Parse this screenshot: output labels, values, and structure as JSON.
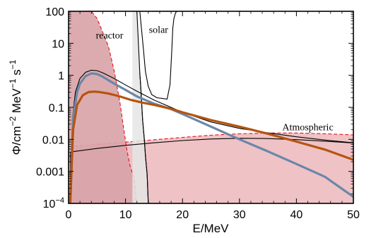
{
  "chart_data": {
    "type": "area",
    "xlabel": "E/MeV",
    "ylabel_parts": [
      "Φ/cm",
      "−2",
      " MeV",
      "−1",
      " s",
      "−1"
    ],
    "xlim": [
      0,
      50
    ],
    "ylim": [
      0.0001,
      100
    ],
    "yscale": "log",
    "x_ticks": [
      0,
      10,
      20,
      30,
      40,
      50
    ],
    "y_ticks": [
      {
        "value": 100,
        "label": "100"
      },
      {
        "value": 10,
        "label": "10"
      },
      {
        "value": 1,
        "label": "1"
      },
      {
        "value": 0.1,
        "label": "0.1"
      },
      {
        "value": 0.01,
        "label": "0.01"
      },
      {
        "value": 0.001,
        "label": "0.001"
      },
      {
        "value": 0.0001,
        "label_base": "10",
        "label_exp": "−4"
      }
    ],
    "annotations": [
      {
        "text": "reactor",
        "x": 7.2,
        "y": 14
      },
      {
        "text": "solar",
        "x": 15.8,
        "y": 21
      },
      {
        "text": "Atmospheric",
        "x": 42,
        "y": 0.019
      }
    ],
    "regions": [
      {
        "id": "atmospheric",
        "fill": "#eebdc1",
        "stroke": "#e8141a",
        "dashed": true,
        "x": [
          0,
          5,
          10,
          15,
          20,
          25,
          30,
          35,
          40,
          45,
          50
        ],
        "y": [
          0.006,
          0.007,
          0.0082,
          0.0097,
          0.0115,
          0.0135,
          0.015,
          0.0158,
          0.0158,
          0.015,
          0.0138
        ]
      },
      {
        "id": "reactor",
        "fill": "#d9a4a8",
        "stroke": "#e8141a",
        "dashed": true,
        "x": [
          0.1,
          0.3,
          1,
          2,
          3,
          4,
          5,
          6,
          7,
          8,
          9,
          10,
          10.3,
          10.8,
          11.5,
          11.7,
          11.8,
          12
        ],
        "y": [
          100,
          100,
          100,
          100,
          100,
          100,
          60,
          22,
          8,
          1.4,
          0.15,
          0.009,
          0.004,
          0.0015,
          0.0006,
          0.0003,
          0.00015,
          0.0001
        ]
      },
      {
        "id": "solar",
        "fill": "#e5e5e5",
        "stroke": "#000000",
        "dashed": false,
        "x": [
          11.2,
          12,
          12.5,
          12.7,
          13,
          13.3,
          13.5,
          13.8,
          14,
          14.6,
          15.5,
          16.5,
          17.3,
          17.8,
          18.1,
          18.3,
          18.5,
          18.8,
          19
        ],
        "y": [
          100,
          100,
          1.2,
          0.35,
          0.04,
          0.01,
          0.003,
          0.0008,
          0.0001,
          0.0001,
          0.0001,
          0.0001,
          0.0001,
          0.0001,
          0.0001,
          0.0001,
          0.0001,
          0.0001,
          0.0001
        ]
      },
      {
        "id": "solar-upper",
        "fill": "none",
        "stroke": "#000000",
        "dashed": false,
        "x": [
          12,
          12.5,
          13,
          13.2,
          13.5,
          14,
          14.6,
          15.5,
          16.5,
          17.3,
          17.8,
          18.1,
          18.3,
          18.5,
          18.7,
          18.8,
          18.9,
          19
        ],
        "y": [
          100,
          100,
          12,
          5,
          1.3,
          0.45,
          0.25,
          0.2,
          0.19,
          0.18,
          0.5,
          5,
          30,
          60,
          80,
          90,
          95,
          100
        ]
      },
      {
        "id": "solar-lower",
        "fill": "none",
        "stroke": "#000000",
        "dashed": false,
        "x": [
          12.5,
          12.7,
          13,
          13.3,
          13.5,
          13.8,
          14
        ],
        "y": [
          1.2,
          0.35,
          0.04,
          0.01,
          0.003,
          0.0008,
          0.0001
        ]
      }
    ],
    "series": [
      {
        "id": "thin-upper",
        "color": "#000000",
        "width": 1.1,
        "x": [
          0.3,
          0.7,
          1.2,
          2,
          3,
          4,
          5,
          6,
          8,
          10,
          12,
          15,
          20,
          25,
          30,
          35,
          40,
          45,
          50
        ],
        "y": [
          0.0001,
          0.05,
          0.3,
          0.8,
          1.25,
          1.45,
          1.4,
          1.2,
          0.8,
          0.5,
          0.32,
          0.17,
          0.07,
          0.035,
          0.022,
          0.016,
          0.012,
          0.0095,
          0.0078
        ]
      },
      {
        "id": "thin-lower",
        "color": "#000000",
        "width": 1.1,
        "x": [
          0.3,
          0.35,
          1,
          5,
          10,
          15,
          20,
          25,
          30,
          35,
          40,
          45,
          50
        ],
        "y": [
          0.0001,
          0.0038,
          0.0042,
          0.0052,
          0.0065,
          0.0078,
          0.0092,
          0.0103,
          0.0108,
          0.0106,
          0.0098,
          0.0088,
          0.0077
        ]
      },
      {
        "id": "blue",
        "color": "#6a87a8",
        "width": 3.2,
        "x": [
          0.3,
          0.8,
          1.5,
          2,
          3,
          4,
          5,
          6,
          8,
          10,
          12,
          15,
          18,
          20,
          25,
          30,
          35,
          40,
          45,
          50
        ],
        "y": [
          0.0001,
          0.05,
          0.3,
          0.55,
          0.95,
          1.15,
          1.1,
          0.9,
          0.55,
          0.35,
          0.22,
          0.13,
          0.088,
          0.062,
          0.025,
          0.01,
          0.0042,
          0.0017,
          0.00068,
          0.00016
        ]
      },
      {
        "id": "orange",
        "color": "#b5540f",
        "width": 3.2,
        "x": [
          0.3,
          0.8,
          1.5,
          2.5,
          3.5,
          4.5,
          5.5,
          7,
          9,
          11,
          13,
          15,
          18,
          20,
          25,
          30,
          35,
          40,
          45,
          50
        ],
        "y": [
          0.0001,
          0.02,
          0.12,
          0.24,
          0.3,
          0.31,
          0.3,
          0.27,
          0.22,
          0.17,
          0.14,
          0.12,
          0.09,
          0.07,
          0.04,
          0.025,
          0.015,
          0.0085,
          0.0048,
          0.0023
        ]
      }
    ]
  }
}
